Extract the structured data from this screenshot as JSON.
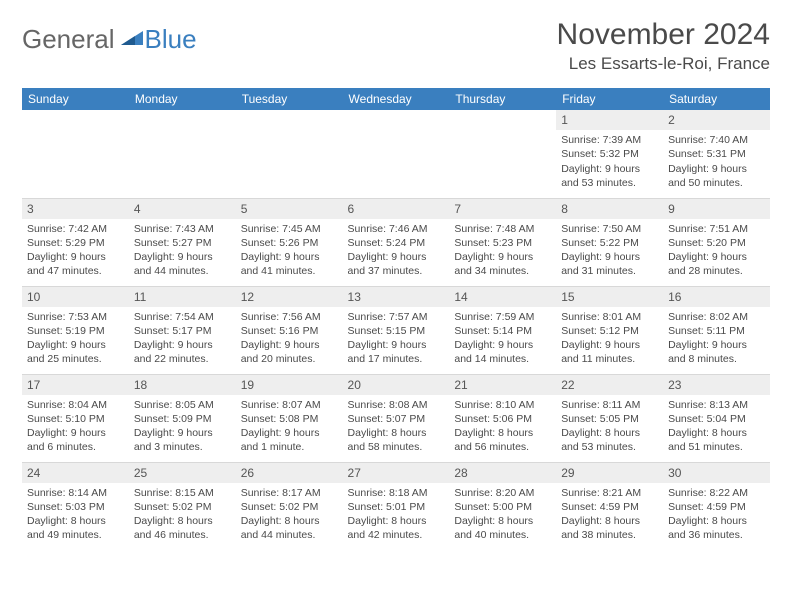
{
  "logo": {
    "general": "General",
    "blue": "Blue"
  },
  "title": "November 2024",
  "location": "Les Essarts-le-Roi, France",
  "header_color": "#3a7fbf",
  "weekday_bg": "#3a7fbf",
  "weekday_fg": "#ffffff",
  "cell_border": "#d8d8d8",
  "daynum_bg": "#eeeeee",
  "weekdays": [
    "Sunday",
    "Monday",
    "Tuesday",
    "Wednesday",
    "Thursday",
    "Friday",
    "Saturday"
  ],
  "weeks": [
    [
      {
        "n": "",
        "sr": "",
        "ss": "",
        "dl": ""
      },
      {
        "n": "",
        "sr": "",
        "ss": "",
        "dl": ""
      },
      {
        "n": "",
        "sr": "",
        "ss": "",
        "dl": ""
      },
      {
        "n": "",
        "sr": "",
        "ss": "",
        "dl": ""
      },
      {
        "n": "",
        "sr": "",
        "ss": "",
        "dl": ""
      },
      {
        "n": "1",
        "sr": "Sunrise: 7:39 AM",
        "ss": "Sunset: 5:32 PM",
        "dl": "Daylight: 9 hours and 53 minutes."
      },
      {
        "n": "2",
        "sr": "Sunrise: 7:40 AM",
        "ss": "Sunset: 5:31 PM",
        "dl": "Daylight: 9 hours and 50 minutes."
      }
    ],
    [
      {
        "n": "3",
        "sr": "Sunrise: 7:42 AM",
        "ss": "Sunset: 5:29 PM",
        "dl": "Daylight: 9 hours and 47 minutes."
      },
      {
        "n": "4",
        "sr": "Sunrise: 7:43 AM",
        "ss": "Sunset: 5:27 PM",
        "dl": "Daylight: 9 hours and 44 minutes."
      },
      {
        "n": "5",
        "sr": "Sunrise: 7:45 AM",
        "ss": "Sunset: 5:26 PM",
        "dl": "Daylight: 9 hours and 41 minutes."
      },
      {
        "n": "6",
        "sr": "Sunrise: 7:46 AM",
        "ss": "Sunset: 5:24 PM",
        "dl": "Daylight: 9 hours and 37 minutes."
      },
      {
        "n": "7",
        "sr": "Sunrise: 7:48 AM",
        "ss": "Sunset: 5:23 PM",
        "dl": "Daylight: 9 hours and 34 minutes."
      },
      {
        "n": "8",
        "sr": "Sunrise: 7:50 AM",
        "ss": "Sunset: 5:22 PM",
        "dl": "Daylight: 9 hours and 31 minutes."
      },
      {
        "n": "9",
        "sr": "Sunrise: 7:51 AM",
        "ss": "Sunset: 5:20 PM",
        "dl": "Daylight: 9 hours and 28 minutes."
      }
    ],
    [
      {
        "n": "10",
        "sr": "Sunrise: 7:53 AM",
        "ss": "Sunset: 5:19 PM",
        "dl": "Daylight: 9 hours and 25 minutes."
      },
      {
        "n": "11",
        "sr": "Sunrise: 7:54 AM",
        "ss": "Sunset: 5:17 PM",
        "dl": "Daylight: 9 hours and 22 minutes."
      },
      {
        "n": "12",
        "sr": "Sunrise: 7:56 AM",
        "ss": "Sunset: 5:16 PM",
        "dl": "Daylight: 9 hours and 20 minutes."
      },
      {
        "n": "13",
        "sr": "Sunrise: 7:57 AM",
        "ss": "Sunset: 5:15 PM",
        "dl": "Daylight: 9 hours and 17 minutes."
      },
      {
        "n": "14",
        "sr": "Sunrise: 7:59 AM",
        "ss": "Sunset: 5:14 PM",
        "dl": "Daylight: 9 hours and 14 minutes."
      },
      {
        "n": "15",
        "sr": "Sunrise: 8:01 AM",
        "ss": "Sunset: 5:12 PM",
        "dl": "Daylight: 9 hours and 11 minutes."
      },
      {
        "n": "16",
        "sr": "Sunrise: 8:02 AM",
        "ss": "Sunset: 5:11 PM",
        "dl": "Daylight: 9 hours and 8 minutes."
      }
    ],
    [
      {
        "n": "17",
        "sr": "Sunrise: 8:04 AM",
        "ss": "Sunset: 5:10 PM",
        "dl": "Daylight: 9 hours and 6 minutes."
      },
      {
        "n": "18",
        "sr": "Sunrise: 8:05 AM",
        "ss": "Sunset: 5:09 PM",
        "dl": "Daylight: 9 hours and 3 minutes."
      },
      {
        "n": "19",
        "sr": "Sunrise: 8:07 AM",
        "ss": "Sunset: 5:08 PM",
        "dl": "Daylight: 9 hours and 1 minute."
      },
      {
        "n": "20",
        "sr": "Sunrise: 8:08 AM",
        "ss": "Sunset: 5:07 PM",
        "dl": "Daylight: 8 hours and 58 minutes."
      },
      {
        "n": "21",
        "sr": "Sunrise: 8:10 AM",
        "ss": "Sunset: 5:06 PM",
        "dl": "Daylight: 8 hours and 56 minutes."
      },
      {
        "n": "22",
        "sr": "Sunrise: 8:11 AM",
        "ss": "Sunset: 5:05 PM",
        "dl": "Daylight: 8 hours and 53 minutes."
      },
      {
        "n": "23",
        "sr": "Sunrise: 8:13 AM",
        "ss": "Sunset: 5:04 PM",
        "dl": "Daylight: 8 hours and 51 minutes."
      }
    ],
    [
      {
        "n": "24",
        "sr": "Sunrise: 8:14 AM",
        "ss": "Sunset: 5:03 PM",
        "dl": "Daylight: 8 hours and 49 minutes."
      },
      {
        "n": "25",
        "sr": "Sunrise: 8:15 AM",
        "ss": "Sunset: 5:02 PM",
        "dl": "Daylight: 8 hours and 46 minutes."
      },
      {
        "n": "26",
        "sr": "Sunrise: 8:17 AM",
        "ss": "Sunset: 5:02 PM",
        "dl": "Daylight: 8 hours and 44 minutes."
      },
      {
        "n": "27",
        "sr": "Sunrise: 8:18 AM",
        "ss": "Sunset: 5:01 PM",
        "dl": "Daylight: 8 hours and 42 minutes."
      },
      {
        "n": "28",
        "sr": "Sunrise: 8:20 AM",
        "ss": "Sunset: 5:00 PM",
        "dl": "Daylight: 8 hours and 40 minutes."
      },
      {
        "n": "29",
        "sr": "Sunrise: 8:21 AM",
        "ss": "Sunset: 4:59 PM",
        "dl": "Daylight: 8 hours and 38 minutes."
      },
      {
        "n": "30",
        "sr": "Sunrise: 8:22 AM",
        "ss": "Sunset: 4:59 PM",
        "dl": "Daylight: 8 hours and 36 minutes."
      }
    ]
  ]
}
